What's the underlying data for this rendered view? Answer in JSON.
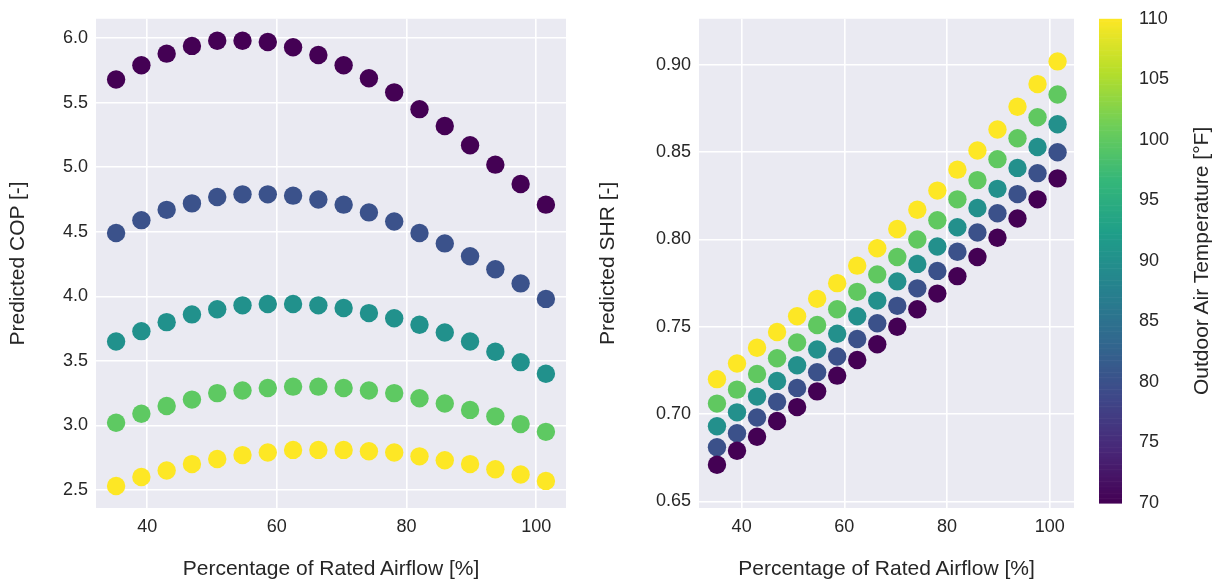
{
  "chart_data": [
    {
      "type": "scatter",
      "xlabel": "Percentage of Rated Airflow [%]",
      "ylabel": "Predicted COP [-]",
      "marker": "circle",
      "grid": true,
      "legend": false,
      "xlim": [
        32.1,
        104.6
      ],
      "xticks": [
        40,
        60,
        80,
        100
      ],
      "ylim": [
        2.36,
        6.15
      ],
      "yticks": [
        {
          "value": 2.5,
          "label": "2.5"
        },
        {
          "value": 3,
          "label": "3.0"
        },
        {
          "value": 3.5,
          "label": "3.5"
        },
        {
          "value": 4,
          "label": "4.0"
        },
        {
          "value": 4.5,
          "label": "4.5"
        },
        {
          "value": 5,
          "label": "5.0"
        },
        {
          "value": 5.5,
          "label": "5.5"
        },
        {
          "value": 6,
          "label": "6.0"
        }
      ],
      "x": [
        35.2,
        39.1,
        43.0,
        46.9,
        50.8,
        54.7,
        58.6,
        62.5,
        66.4,
        70.3,
        74.2,
        78.1,
        82.0,
        85.9,
        89.8,
        93.7,
        97.6,
        101.5
      ],
      "series": [
        {
          "color": "#440154",
          "values": [
            5.68,
            5.79,
            5.88,
            5.94,
            5.98,
            5.98,
            5.97,
            5.93,
            5.87,
            5.79,
            5.69,
            5.58,
            5.45,
            5.32,
            5.17,
            5.02,
            4.87,
            4.71
          ]
        },
        {
          "color": "#3b528b",
          "values": [
            4.49,
            4.59,
            4.67,
            4.72,
            4.77,
            4.79,
            4.79,
            4.78,
            4.75,
            4.71,
            4.65,
            4.58,
            4.49,
            4.41,
            4.31,
            4.21,
            4.1,
            3.98
          ]
        },
        {
          "color": "#21918c",
          "values": [
            3.65,
            3.73,
            3.8,
            3.86,
            3.9,
            3.93,
            3.94,
            3.94,
            3.93,
            3.91,
            3.87,
            3.83,
            3.78,
            3.72,
            3.65,
            3.57,
            3.49,
            3.4
          ]
        },
        {
          "color": "#5ec962",
          "values": [
            3.02,
            3.09,
            3.15,
            3.2,
            3.25,
            3.27,
            3.29,
            3.3,
            3.3,
            3.29,
            3.27,
            3.25,
            3.21,
            3.17,
            3.12,
            3.07,
            3.01,
            2.95
          ]
        },
        {
          "color": "#fde725",
          "values": [
            2.53,
            2.6,
            2.65,
            2.7,
            2.74,
            2.77,
            2.79,
            2.81,
            2.81,
            2.81,
            2.8,
            2.79,
            2.76,
            2.73,
            2.7,
            2.66,
            2.62,
            2.57
          ]
        }
      ]
    },
    {
      "type": "scatter",
      "xlabel": "Percentage of Rated Airflow [%]",
      "ylabel": "Predicted SHR [-]",
      "clabel": "Outdoor Air Temperature [°F]",
      "marker": "circle",
      "grid": true,
      "legend": false,
      "xlim": [
        31.7,
        104.7
      ],
      "xticks": [
        40,
        60,
        80,
        100
      ],
      "ylim": [
        0.6462,
        0.9264
      ],
      "yticks": [
        {
          "value": 0.65,
          "label": "0.65"
        },
        {
          "value": 0.7,
          "label": "0.70"
        },
        {
          "value": 0.75,
          "label": "0.75"
        },
        {
          "value": 0.8,
          "label": "0.80"
        },
        {
          "value": 0.85,
          "label": "0.85"
        },
        {
          "value": 0.9,
          "label": "0.90"
        }
      ],
      "clim": [
        70,
        110
      ],
      "cticks": [
        70,
        75,
        80,
        85,
        90,
        95,
        100,
        105,
        110
      ],
      "x": [
        35.2,
        39.1,
        43.0,
        46.9,
        50.8,
        54.7,
        58.6,
        62.5,
        66.4,
        70.3,
        74.2,
        78.1,
        82.0,
        85.9,
        89.8,
        93.7,
        97.6,
        101.5
      ],
      "series": [
        {
          "cvalues": [
            70,
            70,
            70,
            70,
            70,
            70,
            70,
            70,
            70,
            70,
            70,
            70,
            70,
            70,
            70,
            70,
            70,
            70
          ],
          "values": [
            0.671,
            0.679,
            0.687,
            0.696,
            0.704,
            0.713,
            0.722,
            0.731,
            0.74,
            0.75,
            0.76,
            0.769,
            0.779,
            0.79,
            0.801,
            0.812,
            0.823,
            0.835
          ]
        },
        {
          "cvalues": [
            80,
            80,
            80,
            80,
            80,
            80,
            80,
            80,
            80,
            80,
            80,
            80,
            80,
            80,
            80,
            80,
            80,
            80
          ],
          "values": [
            0.681,
            0.689,
            0.698,
            0.707,
            0.715,
            0.724,
            0.733,
            0.743,
            0.752,
            0.762,
            0.772,
            0.782,
            0.793,
            0.804,
            0.815,
            0.826,
            0.838,
            0.85
          ]
        },
        {
          "cvalues": [
            90,
            90,
            90,
            90,
            90,
            90,
            90,
            90,
            90,
            90,
            90,
            90,
            90,
            90,
            90,
            90,
            90,
            90
          ],
          "values": [
            0.693,
            0.701,
            0.71,
            0.719,
            0.728,
            0.737,
            0.746,
            0.756,
            0.765,
            0.776,
            0.786,
            0.796,
            0.807,
            0.818,
            0.829,
            0.841,
            0.853,
            0.866
          ]
        },
        {
          "cvalues": [
            100,
            100,
            100,
            100,
            100,
            100,
            100,
            100,
            100,
            100,
            100,
            100,
            100,
            100,
            100,
            100,
            100,
            100
          ],
          "values": [
            0.706,
            0.714,
            0.723,
            0.732,
            0.741,
            0.751,
            0.76,
            0.77,
            0.78,
            0.79,
            0.8,
            0.811,
            0.823,
            0.834,
            0.846,
            0.858,
            0.87,
            0.883
          ]
        },
        {
          "cvalues": [
            110,
            110,
            110,
            110,
            110,
            110,
            110,
            110,
            110,
            110,
            110,
            110,
            110,
            110,
            110,
            110,
            110,
            110
          ],
          "values": [
            0.72,
            0.729,
            0.738,
            0.747,
            0.756,
            0.766,
            0.775,
            0.785,
            0.795,
            0.806,
            0.817,
            0.828,
            0.84,
            0.851,
            0.863,
            0.876,
            0.889,
            0.902
          ]
        }
      ]
    }
  ]
}
